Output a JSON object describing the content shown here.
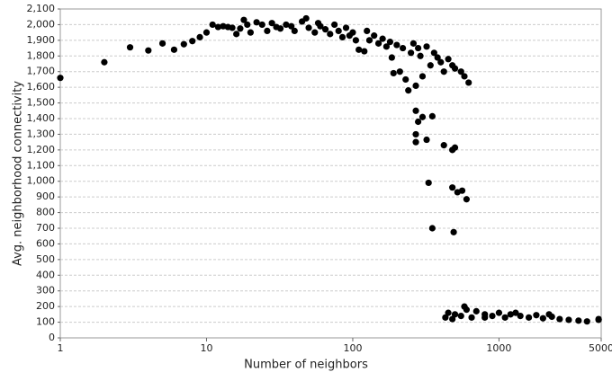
{
  "chart_data": {
    "type": "scatter",
    "xlabel": "Number of neighbors",
    "ylabel": "Avg. neighborhood connectivity",
    "color": "#000000",
    "xscale": "log",
    "grid": true,
    "xlim": [
      1,
      5000
    ],
    "xticks": [
      1,
      10,
      100,
      1000,
      5000
    ],
    "ylim": [
      0,
      2100
    ],
    "yticks": [
      0,
      100,
      200,
      300,
      400,
      500,
      600,
      700,
      800,
      900,
      {
        "value": 1000,
        "label": "1,000"
      },
      {
        "value": 1100,
        "label": "1,100"
      },
      {
        "value": 1200,
        "label": "1,200"
      },
      {
        "value": 1300,
        "label": "1,300"
      },
      {
        "value": 1400,
        "label": "1,400"
      },
      {
        "value": 1500,
        "label": "1,500"
      },
      {
        "value": 1600,
        "label": "1,600"
      },
      {
        "value": 1700,
        "label": "1,700"
      },
      {
        "value": 1800,
        "label": "1,800"
      },
      {
        "value": 1900,
        "label": "1,900"
      },
      {
        "value": 2000,
        "label": "2,000"
      },
      {
        "value": 2100,
        "label": "2,100"
      }
    ],
    "x": [
      1,
      2,
      3,
      4,
      5,
      6,
      7,
      8,
      9,
      10,
      11,
      12,
      13,
      14,
      15,
      16,
      17,
      18,
      19,
      20,
      22,
      24,
      26,
      28,
      30,
      32,
      35,
      38,
      40,
      45,
      48,
      50,
      55,
      58,
      60,
      65,
      70,
      75,
      80,
      85,
      90,
      95,
      100,
      105,
      110,
      120,
      125,
      130,
      140,
      150,
      160,
      170,
      180,
      185,
      190,
      200,
      210,
      220,
      230,
      240,
      250,
      260,
      270,
      280,
      290,
      300,
      320,
      340,
      360,
      380,
      400,
      420,
      450,
      480,
      500,
      550,
      580,
      620,
      270,
      280,
      300,
      350,
      270,
      270,
      320,
      420,
      480,
      500,
      330,
      480,
      520,
      560,
      600,
      350,
      490,
      430,
      450,
      480,
      500,
      550,
      580,
      600,
      650,
      700,
      800,
      900,
      1000,
      1100,
      1200,
      1400,
      1600,
      1800,
      2000,
      2300,
      2600,
      3000,
      3500,
      4000,
      4800,
      4800,
      800,
      1300,
      2200
    ],
    "values": [
      1660,
      1760,
      1855,
      1835,
      1880,
      1840,
      1875,
      1895,
      1920,
      1950,
      2000,
      1985,
      1990,
      1985,
      1980,
      1940,
      1975,
      2030,
      2000,
      1950,
      2015,
      2000,
      1960,
      2010,
      1985,
      1975,
      2000,
      1990,
      1960,
      2020,
      2040,
      1980,
      1950,
      2010,
      1990,
      1970,
      1940,
      2000,
      1960,
      1920,
      1980,
      1930,
      1950,
      1900,
      1840,
      1830,
      1960,
      1900,
      1930,
      1880,
      1910,
      1860,
      1890,
      1790,
      1690,
      1870,
      1700,
      1850,
      1650,
      1580,
      1820,
      1880,
      1610,
      1850,
      1800,
      1670,
      1860,
      1740,
      1820,
      1790,
      1760,
      1700,
      1780,
      1740,
      1720,
      1700,
      1670,
      1630,
      1450,
      1380,
      1410,
      1415,
      1300,
      1250,
      1265,
      1230,
      1200,
      1215,
      990,
      960,
      930,
      940,
      885,
      700,
      675,
      130,
      160,
      120,
      150,
      140,
      200,
      180,
      130,
      170,
      150,
      140,
      160,
      130,
      150,
      140,
      130,
      145,
      125,
      135,
      120,
      115,
      110,
      105,
      115,
      120,
      130,
      160,
      150
    ]
  }
}
